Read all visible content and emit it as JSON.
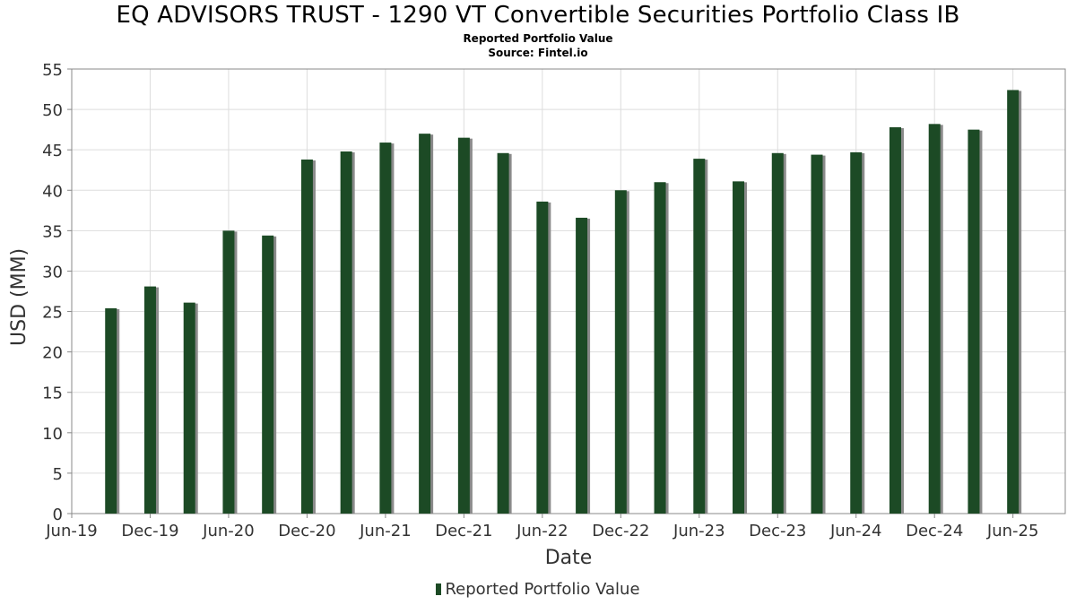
{
  "chart_data": {
    "type": "bar",
    "title": "EQ ADVISORS TRUST - 1290 VT Convertible Securities Portfolio Class IB",
    "subtitle_lines": [
      "Reported Portfolio Value",
      "Source: Fintel.io"
    ],
    "xlabel": "Date",
    "ylabel": "USD (MM)",
    "ylim": [
      0,
      55
    ],
    "yticks": [
      0,
      5,
      10,
      15,
      20,
      25,
      30,
      35,
      40,
      45,
      50,
      55
    ],
    "xlim": [
      "2019-06",
      "2025-10"
    ],
    "xticks": [
      {
        "label": "Jun-19",
        "date": "2019-06"
      },
      {
        "label": "Dec-19",
        "date": "2019-12"
      },
      {
        "label": "Jun-20",
        "date": "2020-06"
      },
      {
        "label": "Dec-20",
        "date": "2020-12"
      },
      {
        "label": "Jun-21",
        "date": "2021-06"
      },
      {
        "label": "Dec-21",
        "date": "2021-12"
      },
      {
        "label": "Jun-22",
        "date": "2022-06"
      },
      {
        "label": "Dec-22",
        "date": "2022-12"
      },
      {
        "label": "Jun-23",
        "date": "2023-06"
      },
      {
        "label": "Dec-23",
        "date": "2023-12"
      },
      {
        "label": "Jun-24",
        "date": "2024-06"
      },
      {
        "label": "Dec-24",
        "date": "2024-12"
      },
      {
        "label": "Jun-25",
        "date": "2025-06"
      }
    ],
    "grid": true,
    "legend_position": "bottom-center",
    "colors": {
      "bar": "#1c4a25",
      "shadow": "#8a8a8a",
      "grid": "#dddddd",
      "axis": "#888888"
    },
    "series": [
      {
        "name": "Reported Portfolio Value",
        "points": [
          {
            "date": "2019-09",
            "value": 25.4
          },
          {
            "date": "2019-12",
            "value": 28.1
          },
          {
            "date": "2020-03",
            "value": 26.1
          },
          {
            "date": "2020-06",
            "value": 35.0
          },
          {
            "date": "2020-09",
            "value": 34.4
          },
          {
            "date": "2020-12",
            "value": 43.8
          },
          {
            "date": "2021-03",
            "value": 44.8
          },
          {
            "date": "2021-06",
            "value": 45.9
          },
          {
            "date": "2021-09",
            "value": 47.0
          },
          {
            "date": "2021-12",
            "value": 46.5
          },
          {
            "date": "2022-03",
            "value": 44.6
          },
          {
            "date": "2022-06",
            "value": 38.6
          },
          {
            "date": "2022-09",
            "value": 36.6
          },
          {
            "date": "2022-12",
            "value": 40.0
          },
          {
            "date": "2023-03",
            "value": 41.0
          },
          {
            "date": "2023-06",
            "value": 43.9
          },
          {
            "date": "2023-09",
            "value": 41.1
          },
          {
            "date": "2023-12",
            "value": 44.6
          },
          {
            "date": "2024-03",
            "value": 44.4
          },
          {
            "date": "2024-06",
            "value": 44.7
          },
          {
            "date": "2024-09",
            "value": 47.8
          },
          {
            "date": "2024-12",
            "value": 48.2
          },
          {
            "date": "2025-03",
            "value": 47.5
          },
          {
            "date": "2025-06",
            "value": 52.4
          }
        ]
      }
    ]
  }
}
